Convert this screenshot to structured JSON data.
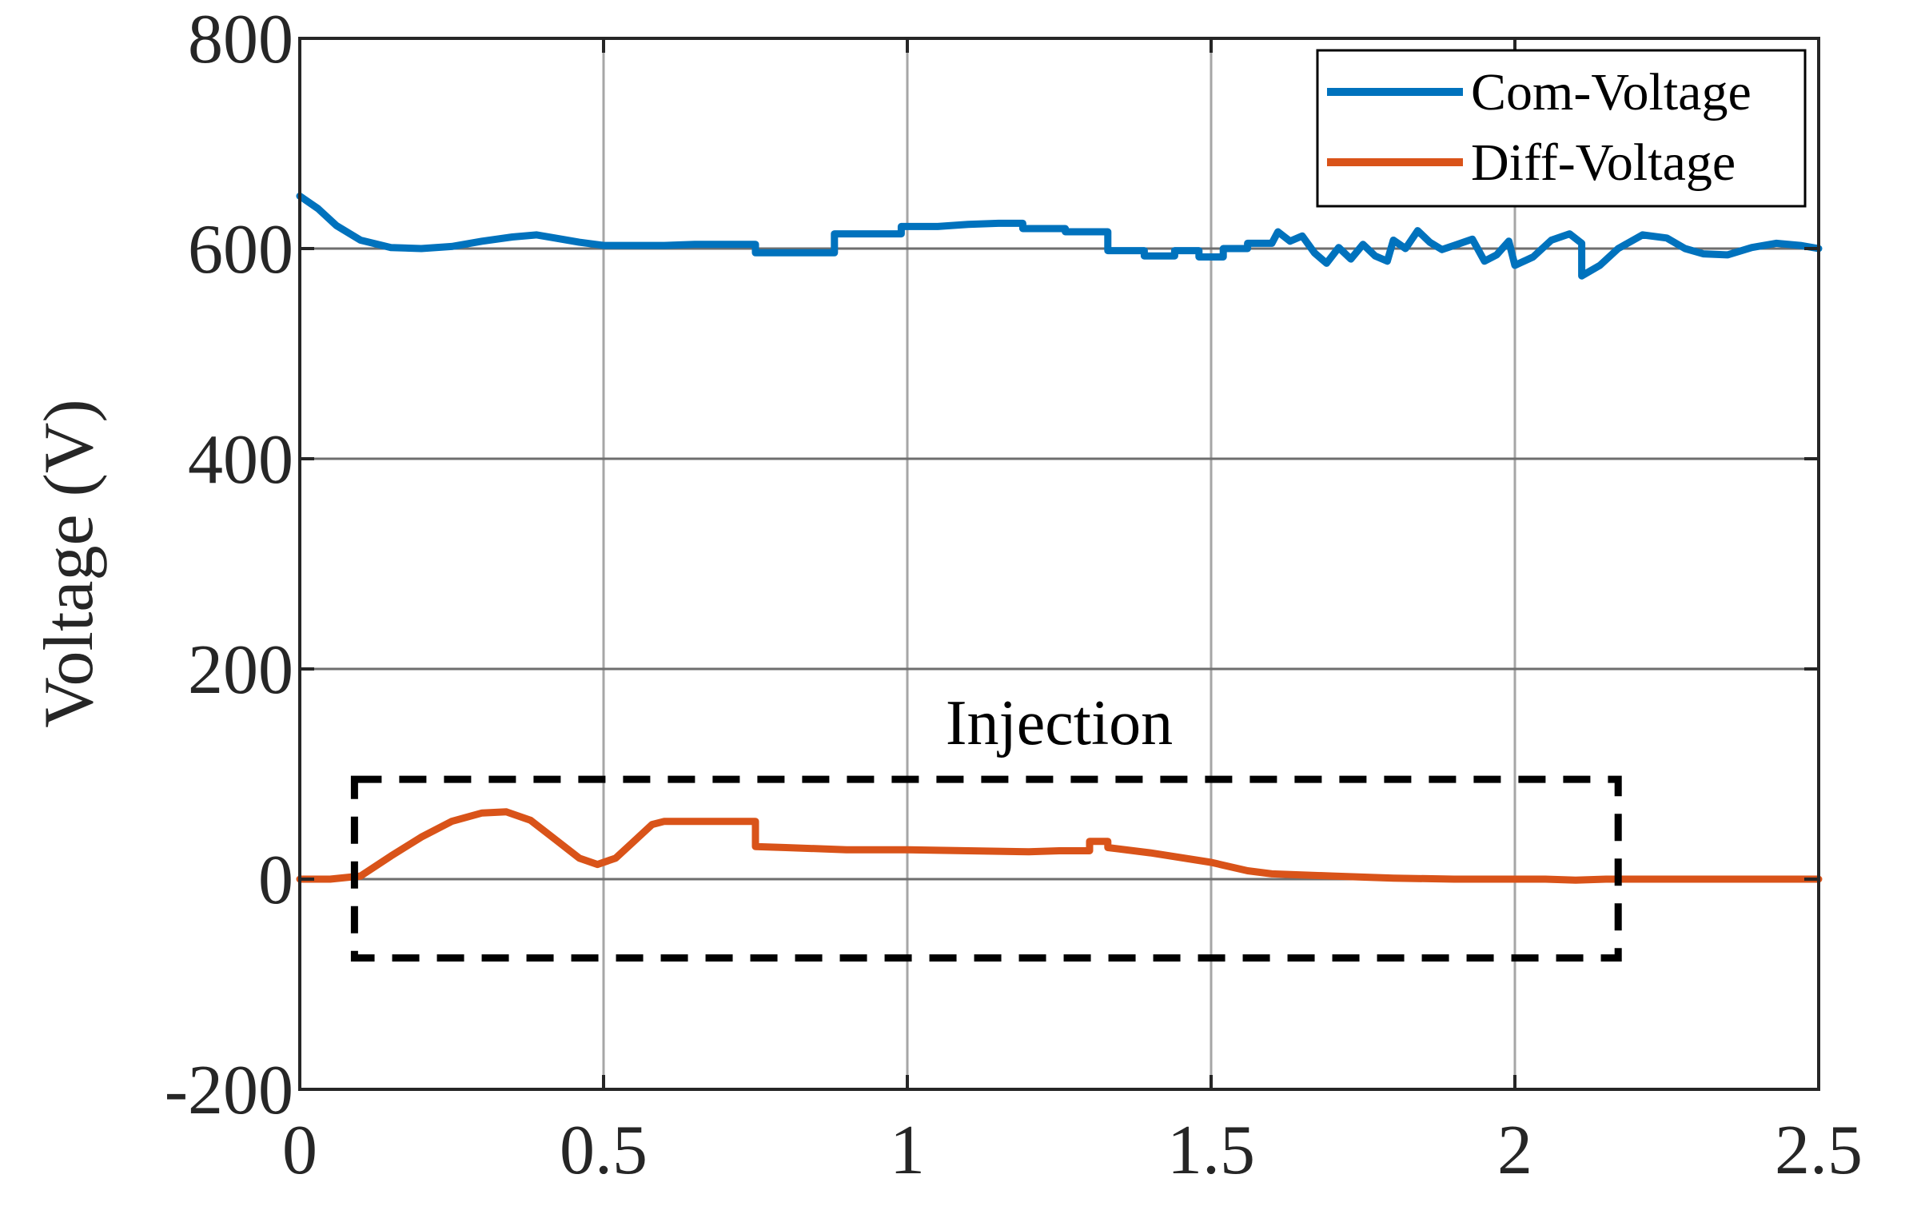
{
  "chart_data": {
    "type": "line",
    "xlim": [
      0,
      2.5
    ],
    "ylim": [
      -200,
      800
    ],
    "x_ticks": [
      0,
      0.5,
      1,
      1.5,
      2,
      2.5
    ],
    "y_ticks": [
      -200,
      0,
      200,
      400,
      600,
      800
    ],
    "x_tick_labels": [
      "0",
      "0.5",
      "1",
      "1.5",
      "2",
      "2.5"
    ],
    "y_tick_labels": [
      "-200",
      "0",
      "200",
      "400",
      "600",
      "800"
    ],
    "xlabel": "",
    "ylabel": "Voltage (V)",
    "grid": true,
    "legend_position": "top-right",
    "series": [
      {
        "name": "Com-Voltage",
        "color": "#0072BD",
        "points": [
          [
            0,
            650
          ],
          [
            0.03,
            638
          ],
          [
            0.06,
            622
          ],
          [
            0.1,
            608
          ],
          [
            0.15,
            601
          ],
          [
            0.2,
            600
          ],
          [
            0.25,
            602
          ],
          [
            0.3,
            607
          ],
          [
            0.35,
            611
          ],
          [
            0.39,
            613
          ],
          [
            0.42,
            610
          ],
          [
            0.46,
            606
          ],
          [
            0.5,
            603
          ],
          [
            0.55,
            603
          ],
          [
            0.6,
            603
          ],
          [
            0.65,
            604
          ],
          [
            0.7,
            604
          ],
          [
            0.75,
            604
          ],
          [
            0.75,
            596
          ],
          [
            0.88,
            596
          ],
          [
            0.88,
            614
          ],
          [
            0.99,
            614
          ],
          [
            0.99,
            621
          ],
          [
            1.05,
            621
          ],
          [
            1.1,
            623
          ],
          [
            1.15,
            624
          ],
          [
            1.19,
            624
          ],
          [
            1.19,
            619
          ],
          [
            1.26,
            619
          ],
          [
            1.26,
            616
          ],
          [
            1.33,
            616
          ],
          [
            1.33,
            598
          ],
          [
            1.39,
            598
          ],
          [
            1.39,
            593
          ],
          [
            1.44,
            593
          ],
          [
            1.44,
            598
          ],
          [
            1.48,
            598
          ],
          [
            1.48,
            592
          ],
          [
            1.52,
            592
          ],
          [
            1.52,
            600
          ],
          [
            1.56,
            600
          ],
          [
            1.56,
            605
          ],
          [
            1.6,
            605
          ],
          [
            1.61,
            616
          ],
          [
            1.63,
            607
          ],
          [
            1.65,
            612
          ],
          [
            1.67,
            596
          ],
          [
            1.69,
            586
          ],
          [
            1.71,
            601
          ],
          [
            1.73,
            590
          ],
          [
            1.75,
            604
          ],
          [
            1.77,
            593
          ],
          [
            1.79,
            588
          ],
          [
            1.8,
            608
          ],
          [
            1.82,
            600
          ],
          [
            1.84,
            617
          ],
          [
            1.86,
            606
          ],
          [
            1.88,
            599
          ],
          [
            1.9,
            603
          ],
          [
            1.93,
            609
          ],
          [
            1.95,
            588
          ],
          [
            1.97,
            594
          ],
          [
            1.99,
            607
          ],
          [
            2.0,
            584
          ],
          [
            2.03,
            592
          ],
          [
            2.06,
            608
          ],
          [
            2.09,
            614
          ],
          [
            2.11,
            605
          ],
          [
            2.11,
            574
          ],
          [
            2.14,
            584
          ],
          [
            2.17,
            600
          ],
          [
            2.21,
            613
          ],
          [
            2.25,
            610
          ],
          [
            2.28,
            600
          ],
          [
            2.31,
            595
          ],
          [
            2.35,
            594
          ],
          [
            2.39,
            601
          ],
          [
            2.43,
            605
          ],
          [
            2.47,
            603
          ],
          [
            2.5,
            600
          ]
        ]
      },
      {
        "name": "Diff-Voltage",
        "color": "#D95319",
        "points": [
          [
            0,
            0
          ],
          [
            0.05,
            0
          ],
          [
            0.1,
            3
          ],
          [
            0.15,
            22
          ],
          [
            0.2,
            40
          ],
          [
            0.25,
            55
          ],
          [
            0.3,
            63
          ],
          [
            0.34,
            64
          ],
          [
            0.38,
            56
          ],
          [
            0.42,
            38
          ],
          [
            0.46,
            20
          ],
          [
            0.49,
            14
          ],
          [
            0.52,
            20
          ],
          [
            0.55,
            36
          ],
          [
            0.58,
            52
          ],
          [
            0.6,
            55
          ],
          [
            0.65,
            55
          ],
          [
            0.75,
            55
          ],
          [
            0.75,
            31
          ],
          [
            0.8,
            30
          ],
          [
            0.9,
            28
          ],
          [
            1.0,
            28
          ],
          [
            1.1,
            27
          ],
          [
            1.2,
            26
          ],
          [
            1.25,
            27
          ],
          [
            1.3,
            27
          ],
          [
            1.3,
            36
          ],
          [
            1.33,
            36
          ],
          [
            1.33,
            30
          ],
          [
            1.4,
            25
          ],
          [
            1.5,
            16
          ],
          [
            1.56,
            8
          ],
          [
            1.6,
            5
          ],
          [
            1.7,
            3
          ],
          [
            1.8,
            1
          ],
          [
            1.9,
            0
          ],
          [
            2.0,
            0
          ],
          [
            2.05,
            0
          ],
          [
            2.1,
            -1
          ],
          [
            2.15,
            0
          ],
          [
            2.2,
            0
          ],
          [
            2.3,
            0
          ],
          [
            2.4,
            0
          ],
          [
            2.5,
            0
          ]
        ]
      }
    ],
    "annotation": {
      "text": "Injection",
      "box_x": [
        0.09,
        2.17
      ],
      "box_y": [
        -75,
        95
      ],
      "text_x": 1.25,
      "text_y": 150
    }
  }
}
